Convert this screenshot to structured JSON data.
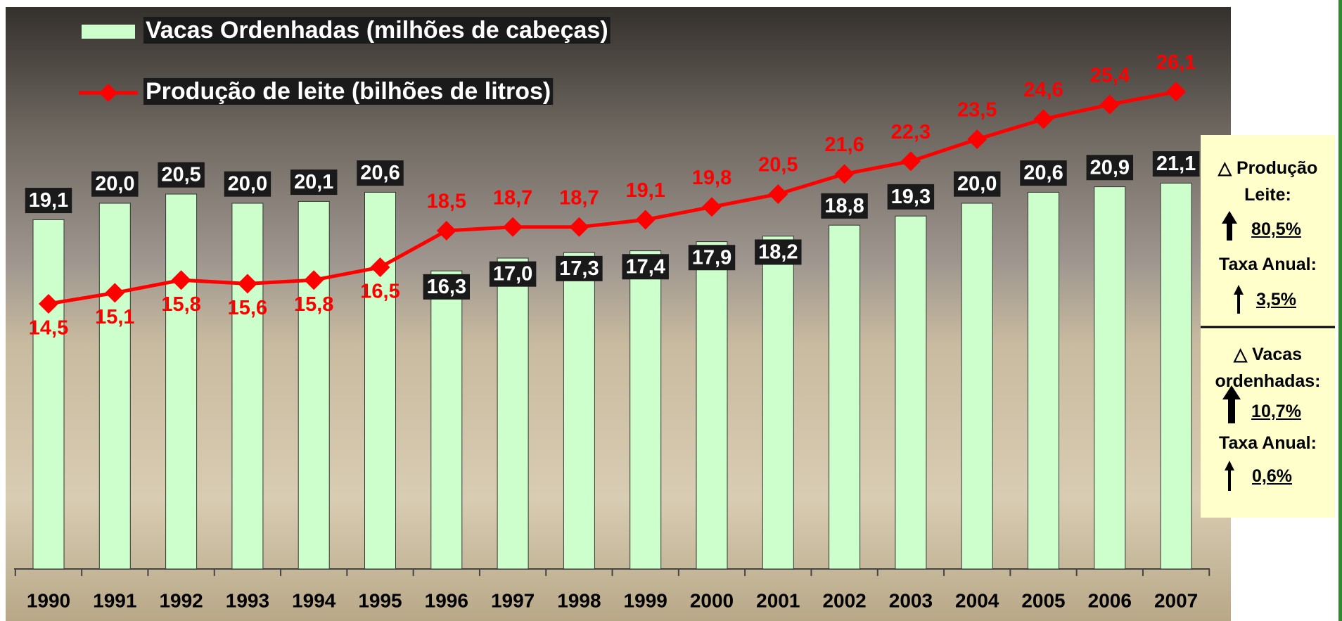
{
  "chart_data": {
    "type": "bar_line",
    "categories": [
      "1990",
      "1991",
      "1992",
      "1993",
      "1994",
      "1995",
      "1996",
      "1997",
      "1998",
      "1999",
      "2000",
      "2001",
      "2002",
      "2003",
      "2004",
      "2005",
      "2006",
      "2007"
    ],
    "series": [
      {
        "name": "Vacas Ordenhadas (milhões de cabeças)",
        "type": "bar",
        "color": "#ccffcc",
        "values": [
          19.1,
          20.0,
          20.5,
          20.0,
          20.1,
          20.6,
          16.3,
          17.0,
          17.3,
          17.4,
          17.9,
          18.2,
          18.8,
          19.3,
          20.0,
          20.6,
          20.9,
          21.1
        ],
        "value_labels": [
          "19,1",
          "20,0",
          "20,5",
          "20,0",
          "20,1",
          "20,6",
          "16,3",
          "17,0",
          "17,3",
          "17,4",
          "17,9",
          "18,2",
          "18,8",
          "19,3",
          "20,0",
          "20,6",
          "20,9",
          "21,1"
        ]
      },
      {
        "name": "Produção de leite (bilhões de litros)",
        "type": "line",
        "color": "#ff0000",
        "values": [
          14.5,
          15.1,
          15.8,
          15.6,
          15.8,
          16.5,
          18.5,
          18.7,
          18.7,
          19.1,
          19.8,
          20.5,
          21.6,
          22.3,
          23.5,
          24.6,
          25.4,
          26.1
        ],
        "value_labels": [
          "14,5",
          "15,1",
          "15,8",
          "15,6",
          "15,8",
          "16,5",
          "18,5",
          "18,7",
          "18,7",
          "19,1",
          "19,8",
          "20,5",
          "21,6",
          "22,3",
          "23,5",
          "24,6",
          "25,4",
          "26,1"
        ]
      }
    ],
    "ylim": [
      0,
      30
    ],
    "annotations": [
      "△ Produção Leite:",
      "80,5%",
      "Taxa Anual:",
      "3,5%",
      "△ Vacas ordenhadas:",
      "10,7%",
      "Taxa Anual:",
      "0,6%"
    ]
  }
}
